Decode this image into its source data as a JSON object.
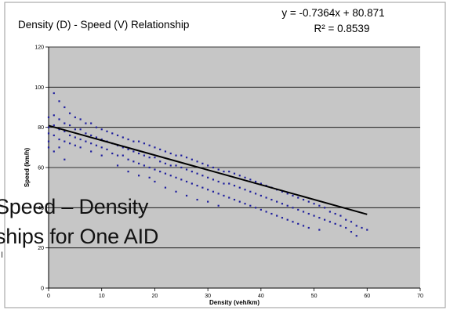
{
  "chart_data": {
    "type": "scatter",
    "title": "Density (D) - Speed (V) Relationship",
    "xlabel": "Density (veh/km)",
    "ylabel": "Speed (km/h)",
    "xlim": [
      0,
      70
    ],
    "ylim": [
      0,
      120
    ],
    "x_ticks": [
      "0",
      "10",
      "20",
      "30",
      "40",
      "50",
      "60",
      "70"
    ],
    "y_ticks": [
      "0",
      "20",
      "40",
      "60",
      "80",
      "100",
      "120"
    ],
    "grid": true,
    "legend": "none",
    "equation": "y = -0.7364x + 80.871",
    "r_squared": "R² = 0.8539",
    "trendline": {
      "slope": -0.7364,
      "intercept": 80.871,
      "x_range": [
        0,
        60
      ]
    },
    "series": [
      {
        "marker_color": "#1f1f9e",
        "points": [
          [
            0,
            85
          ],
          [
            0,
            80
          ],
          [
            0,
            77
          ],
          [
            0,
            73
          ],
          [
            0,
            70
          ],
          [
            1,
            97
          ],
          [
            1,
            86
          ],
          [
            1,
            81
          ],
          [
            1,
            76
          ],
          [
            1,
            68
          ],
          [
            2,
            93
          ],
          [
            2,
            84
          ],
          [
            2,
            79
          ],
          [
            2,
            74
          ],
          [
            2,
            70
          ],
          [
            3,
            90
          ],
          [
            3,
            82
          ],
          [
            3,
            78
          ],
          [
            3,
            73
          ],
          [
            3,
            64
          ],
          [
            4,
            87
          ],
          [
            4,
            81
          ],
          [
            4,
            76
          ],
          [
            4,
            72
          ],
          [
            5,
            85
          ],
          [
            5,
            79
          ],
          [
            5,
            75
          ],
          [
            5,
            71
          ],
          [
            6,
            84
          ],
          [
            6,
            79
          ],
          [
            6,
            74
          ],
          [
            6,
            70
          ],
          [
            7,
            82
          ],
          [
            7,
            77
          ],
          [
            7,
            73
          ],
          [
            8,
            82
          ],
          [
            8,
            76
          ],
          [
            8,
            72
          ],
          [
            8,
            68
          ],
          [
            9,
            80
          ],
          [
            9,
            75
          ],
          [
            9,
            71
          ],
          [
            10,
            79
          ],
          [
            10,
            74
          ],
          [
            10,
            70
          ],
          [
            10,
            66
          ],
          [
            11,
            78
          ],
          [
            11,
            73
          ],
          [
            11,
            69
          ],
          [
            12,
            77
          ],
          [
            12,
            72
          ],
          [
            12,
            67
          ],
          [
            13,
            76
          ],
          [
            13,
            71
          ],
          [
            13,
            66
          ],
          [
            13,
            61
          ],
          [
            14,
            75
          ],
          [
            14,
            70
          ],
          [
            14,
            66
          ],
          [
            15,
            74
          ],
          [
            15,
            69
          ],
          [
            15,
            64
          ],
          [
            15,
            58
          ],
          [
            16,
            73
          ],
          [
            16,
            68
          ],
          [
            16,
            63
          ],
          [
            17,
            73
          ],
          [
            17,
            67
          ],
          [
            17,
            62
          ],
          [
            17,
            56
          ],
          [
            18,
            72
          ],
          [
            18,
            66
          ],
          [
            18,
            61
          ],
          [
            19,
            71
          ],
          [
            19,
            65
          ],
          [
            19,
            60
          ],
          [
            19,
            55
          ],
          [
            20,
            70
          ],
          [
            20,
            65
          ],
          [
            20,
            59
          ],
          [
            20,
            53
          ],
          [
            21,
            69
          ],
          [
            21,
            63
          ],
          [
            21,
            58
          ],
          [
            22,
            68
          ],
          [
            22,
            62
          ],
          [
            22,
            57
          ],
          [
            22,
            50
          ],
          [
            23,
            67
          ],
          [
            23,
            61
          ],
          [
            23,
            56
          ],
          [
            24,
            66
          ],
          [
            24,
            61
          ],
          [
            24,
            55
          ],
          [
            24,
            48
          ],
          [
            25,
            66
          ],
          [
            25,
            60
          ],
          [
            25,
            54
          ],
          [
            26,
            65
          ],
          [
            26,
            59
          ],
          [
            26,
            53
          ],
          [
            26,
            46
          ],
          [
            27,
            64
          ],
          [
            27,
            58
          ],
          [
            27,
            52
          ],
          [
            28,
            63
          ],
          [
            28,
            57
          ],
          [
            28,
            51
          ],
          [
            28,
            44
          ],
          [
            29,
            62
          ],
          [
            29,
            56
          ],
          [
            29,
            50
          ],
          [
            30,
            61
          ],
          [
            30,
            55
          ],
          [
            30,
            49
          ],
          [
            30,
            43
          ],
          [
            31,
            60
          ],
          [
            31,
            54
          ],
          [
            31,
            48
          ],
          [
            32,
            59
          ],
          [
            32,
            53
          ],
          [
            32,
            47
          ],
          [
            32,
            41
          ],
          [
            33,
            58
          ],
          [
            33,
            52
          ],
          [
            33,
            46
          ],
          [
            34,
            58
          ],
          [
            34,
            52
          ],
          [
            34,
            45
          ],
          [
            35,
            57
          ],
          [
            35,
            51
          ],
          [
            35,
            44
          ],
          [
            36,
            56
          ],
          [
            36,
            50
          ],
          [
            36,
            43
          ],
          [
            37,
            55
          ],
          [
            37,
            49
          ],
          [
            37,
            42
          ],
          [
            38,
            54
          ],
          [
            38,
            48
          ],
          [
            38,
            41
          ],
          [
            39,
            53
          ],
          [
            39,
            47
          ],
          [
            39,
            40
          ],
          [
            40,
            52
          ],
          [
            40,
            46
          ],
          [
            40,
            39
          ],
          [
            41,
            51
          ],
          [
            41,
            45
          ],
          [
            41,
            38
          ],
          [
            42,
            50
          ],
          [
            42,
            44
          ],
          [
            42,
            37
          ],
          [
            43,
            49
          ],
          [
            43,
            43
          ],
          [
            43,
            36
          ],
          [
            44,
            48
          ],
          [
            44,
            42
          ],
          [
            44,
            35
          ],
          [
            45,
            47
          ],
          [
            45,
            41
          ],
          [
            45,
            34
          ],
          [
            46,
            46
          ],
          [
            46,
            40
          ],
          [
            46,
            33
          ],
          [
            47,
            45
          ],
          [
            47,
            39
          ],
          [
            47,
            32
          ],
          [
            48,
            44
          ],
          [
            48,
            38
          ],
          [
            48,
            31
          ],
          [
            49,
            43
          ],
          [
            49,
            37
          ],
          [
            49,
            30
          ],
          [
            50,
            42
          ],
          [
            50,
            36
          ],
          [
            51,
            41
          ],
          [
            51,
            35
          ],
          [
            51,
            29
          ],
          [
            52,
            40
          ],
          [
            52,
            34
          ],
          [
            53,
            38
          ],
          [
            53,
            33
          ],
          [
            54,
            37
          ],
          [
            54,
            32
          ],
          [
            55,
            36
          ],
          [
            55,
            31
          ],
          [
            56,
            34
          ],
          [
            56,
            30
          ],
          [
            57,
            33
          ],
          [
            57,
            28
          ],
          [
            58,
            31
          ],
          [
            58,
            26
          ],
          [
            59,
            30
          ],
          [
            60,
            29
          ]
        ]
      }
    ]
  },
  "overlay": {
    "line1": "Speed – Density",
    "line2": "ships for One AID",
    "cut_char": "I"
  }
}
